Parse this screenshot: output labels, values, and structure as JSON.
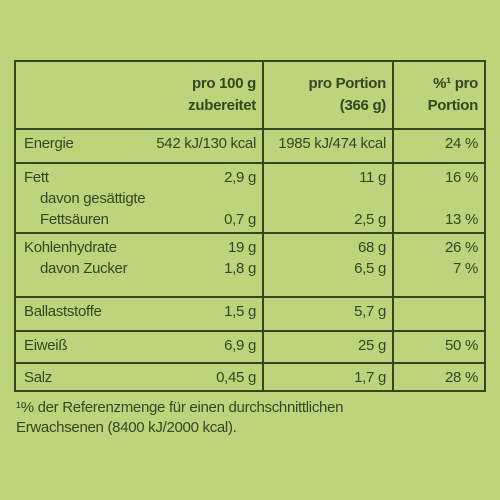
{
  "header": {
    "columns": [
      [
        "pro 100 g",
        "zubereitet"
      ],
      [
        "pro Portion",
        "(366 g)"
      ],
      [
        "%¹ pro",
        "Portion"
      ]
    ]
  },
  "rows": [
    {
      "lines": [
        {
          "label": "Energie",
          "per100": "542 kJ/130 kcal",
          "portion": "1985 kJ/474 kcal",
          "percent": "24 %"
        }
      ]
    },
    {
      "lines": [
        {
          "label": "Fett",
          "per100": "2,9 g",
          "portion": "11 g",
          "percent": "16 %"
        },
        {
          "label": "davon gesättigte"
        },
        {
          "label": "Fettsäuren",
          "per100": "0,7 g",
          "portion": "2,5 g",
          "percent": "13 %"
        }
      ]
    },
    {
      "lines": [
        {
          "label": "Kohlenhydrate",
          "per100": "19 g",
          "portion": "68 g",
          "percent": "26 %"
        },
        {
          "label": "davon Zucker",
          "per100": "1,8 g",
          "portion": "6,5 g",
          "percent": "7 %"
        }
      ]
    },
    {
      "lines": [
        {
          "label": "Ballaststoffe",
          "per100": "1,5 g",
          "portion": "5,7 g"
        }
      ]
    },
    {
      "lines": [
        {
          "label": "Eiweiß",
          "per100": "6,9 g",
          "portion": "25 g",
          "percent": "50 %"
        }
      ]
    },
    {
      "lines": [
        {
          "label": "Salz",
          "per100": "0,45 g",
          "portion": "1,7 g",
          "percent": "28 %"
        }
      ]
    }
  ],
  "footnote": [
    "¹% der Referenzmenge für einen durchschnittlichen",
    "Erwachsenen (8400 kJ/2000 kcal)."
  ]
}
